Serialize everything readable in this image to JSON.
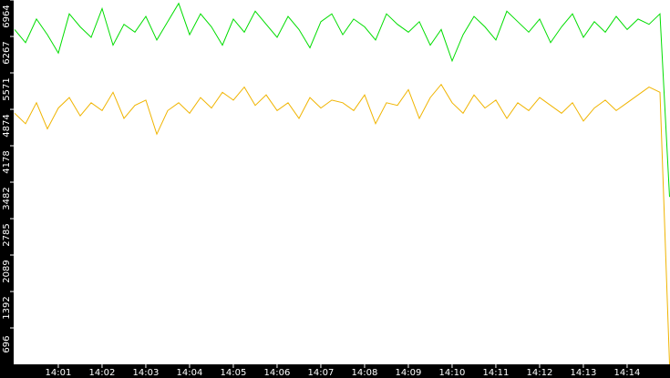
{
  "chart_data": {
    "type": "line",
    "x": [
      0,
      0.25,
      0.5,
      0.75,
      1,
      1.25,
      1.5,
      1.75,
      2,
      2.25,
      2.5,
      2.75,
      3,
      3.25,
      3.5,
      3.75,
      4,
      4.25,
      4.5,
      4.75,
      5,
      5.25,
      5.5,
      5.75,
      6,
      6.25,
      6.5,
      6.75,
      7,
      7.25,
      7.5,
      7.75,
      8,
      8.25,
      8.5,
      8.75,
      9,
      9.25,
      9.5,
      9.75,
      10,
      10.25,
      10.5,
      10.75,
      11,
      11.25,
      11.5,
      11.75,
      12,
      12.25,
      12.5,
      12.75,
      13,
      13.25,
      13.5,
      13.75,
      14,
      14.25,
      14.5,
      14.75,
      14.97
    ],
    "series": [
      {
        "color": "#00dd00",
        "values": [
          6400,
          6150,
          6600,
          6300,
          5950,
          6700,
          6450,
          6250,
          6800,
          6100,
          6500,
          6350,
          6650,
          6200,
          6550,
          6900,
          6300,
          6700,
          6450,
          6100,
          6600,
          6350,
          6750,
          6500,
          6250,
          6650,
          6400,
          6050,
          6550,
          6700,
          6300,
          6600,
          6450,
          6200,
          6700,
          6500,
          6350,
          6550,
          6100,
          6400,
          5800,
          6300,
          6650,
          6450,
          6200,
          6750,
          6550,
          6350,
          6600,
          6150,
          6450,
          6700,
          6250,
          6550,
          6350,
          6650,
          6400,
          6600,
          6500,
          6700,
          3200
        ]
      },
      {
        "color": "#f0b400",
        "values": [
          4800,
          4600,
          5000,
          4500,
          4900,
          5100,
          4750,
          5000,
          4850,
          5200,
          4700,
          4950,
          5050,
          4400,
          4850,
          5000,
          4800,
          5100,
          4900,
          5200,
          5050,
          5300,
          4950,
          5150,
          4850,
          5000,
          4700,
          5100,
          4900,
          5050,
          5000,
          4850,
          5150,
          4600,
          5000,
          4950,
          5250,
          4700,
          5100,
          5350,
          5000,
          4800,
          5150,
          4900,
          5050,
          4700,
          5000,
          4850,
          5100,
          4950,
          4800,
          5000,
          4650,
          4900,
          5050,
          4850,
          5000,
          5150,
          5300,
          5200,
          0
        ]
      }
    ],
    "xlim": [
      -0.02,
      14.98
    ],
    "xticks": [
      {
        "value": 1,
        "label": "14:01"
      },
      {
        "value": 2,
        "label": "14:02"
      },
      {
        "value": 3,
        "label": "14:03"
      },
      {
        "value": 4,
        "label": "14:04"
      },
      {
        "value": 5,
        "label": "14:05"
      },
      {
        "value": 6,
        "label": "14:06"
      },
      {
        "value": 7,
        "label": "14:07"
      },
      {
        "value": 8,
        "label": "14:08"
      },
      {
        "value": 9,
        "label": "14:09"
      },
      {
        "value": 10,
        "label": "14:10"
      },
      {
        "value": 11,
        "label": "14:11"
      },
      {
        "value": 12,
        "label": "14:12"
      },
      {
        "value": 13,
        "label": "14:13"
      },
      {
        "value": 14,
        "label": "14:14"
      }
    ],
    "ylim": [
      0,
      6964
    ],
    "yticks": [
      696,
      1392,
      2089,
      2785,
      3482,
      4178,
      4874,
      5571,
      6267,
      6964
    ]
  }
}
